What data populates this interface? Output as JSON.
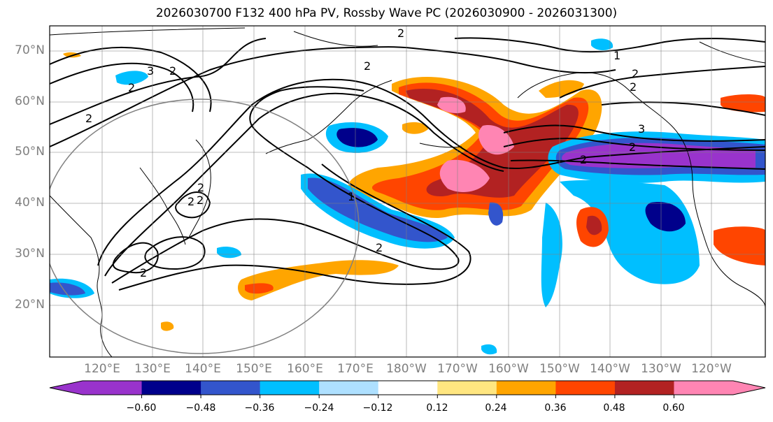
{
  "title": "2026030700 F132 400 hPa PV, Rossby Wave PC (2026030900 - 2026031300)",
  "lat_labels": [
    "70°N",
    "60°N",
    "50°N",
    "40°N",
    "30°N",
    "20°N"
  ],
  "lon_labels": [
    "120°E",
    "130°E",
    "140°E",
    "150°E",
    "160°E",
    "170°E",
    "180°W",
    "170°W",
    "160°W",
    "150°W",
    "140°W",
    "130°W",
    "120°W"
  ],
  "colorbar": {
    "colors": [
      "#9933cc",
      "#00008b",
      "#3355cc",
      "#00bfff",
      "#aee0ff",
      "#ffffff",
      "#ffe680",
      "#ffa500",
      "#ff4500",
      "#b22222",
      "#ff85b3"
    ],
    "tick_labels": [
      "−0.60",
      "−0.48",
      "−0.36",
      "−0.24",
      "−0.12",
      "0.12",
      "0.24",
      "0.36",
      "0.48",
      "0.60"
    ]
  },
  "contour_labels": [
    "2",
    "2",
    "3",
    "2",
    "2",
    "2",
    "2",
    "1",
    "2",
    "2",
    "3",
    "2",
    "2",
    "1",
    "2",
    "2",
    "2",
    "2"
  ]
}
